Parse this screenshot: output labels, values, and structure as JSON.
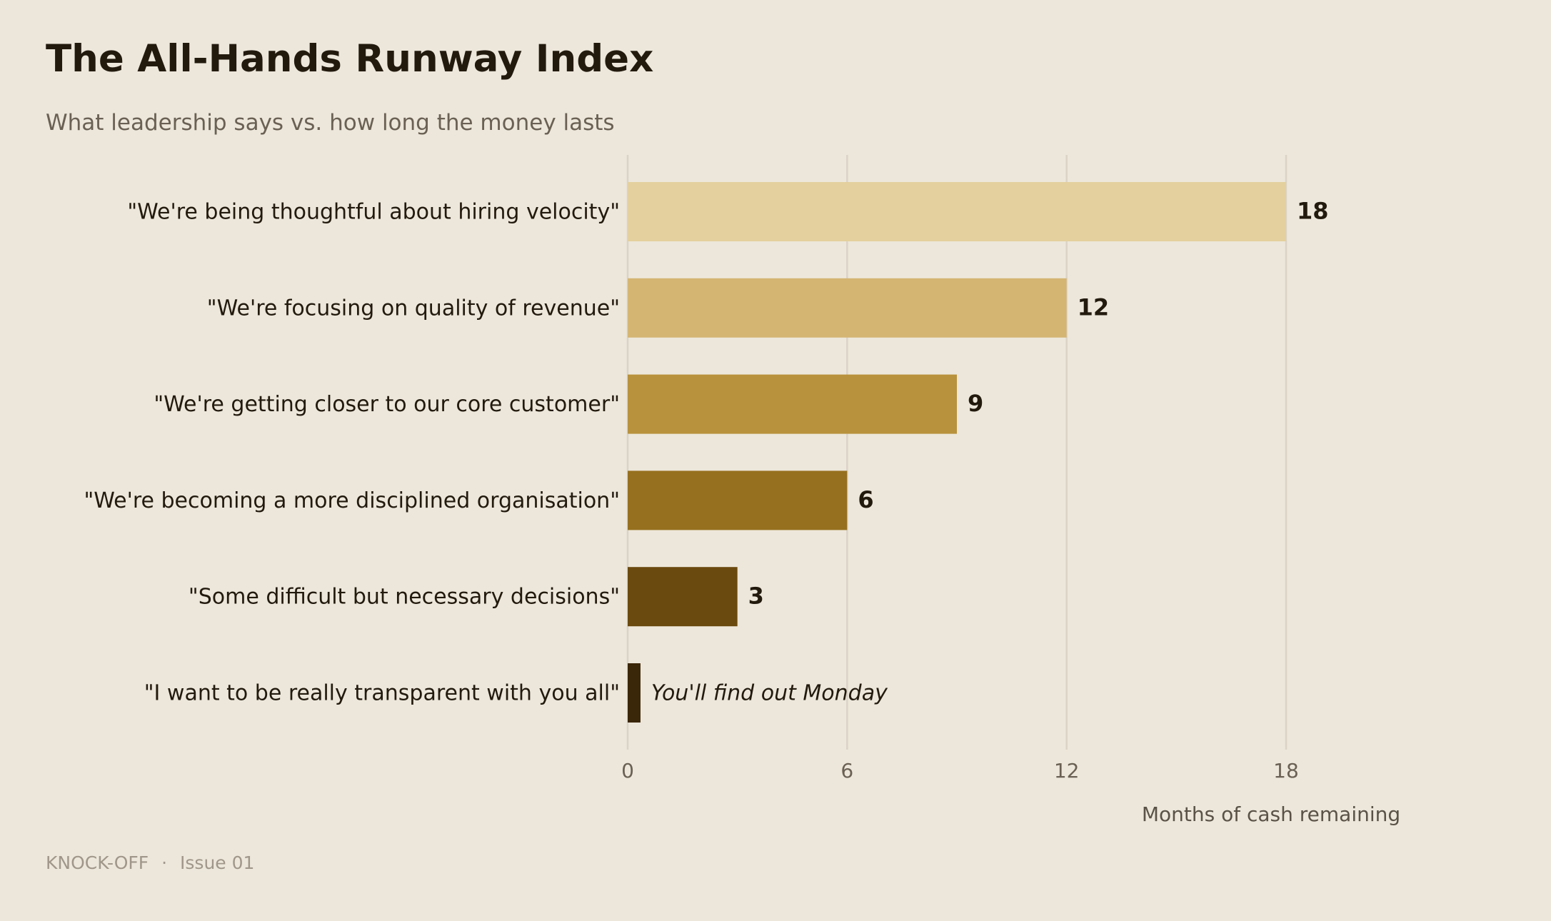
{
  "header": {
    "title": "The All-Hands Runway Index",
    "subtitle": "What leadership says vs. how long the money lasts"
  },
  "footer": {
    "brand": "KNOCK-OFF",
    "separator": "·",
    "issue": "Issue 01"
  },
  "colors": {
    "background": "#EDE7DB",
    "text": "#231A0E",
    "muted": "#6A6154",
    "grid": "#DAD3C6"
  },
  "chart_data": {
    "type": "bar",
    "orientation": "horizontal",
    "title": "The All-Hands Runway Index",
    "subtitle": "What leadership says vs. how long the money lasts",
    "xlabel": "Months of cash remaining",
    "ylabel": "",
    "xlim": [
      0,
      18
    ],
    "xticks": [
      0,
      6,
      12,
      18
    ],
    "grid": "vertical",
    "categories": [
      "\"We're being thoughtful about hiring velocity\"",
      "\"We're focusing on quality of revenue\"",
      "\"We're getting closer to our core customer\"",
      "\"We're becoming a more disciplined organisation\"",
      "\"Some difficult but necessary decisions\"",
      "\"I want to be really transparent with you all\""
    ],
    "values": [
      18,
      12,
      9,
      6,
      3,
      0.35
    ],
    "value_labels": [
      "18",
      "12",
      "9",
      "6",
      "3",
      "You'll find out Monday"
    ],
    "bar_colors": [
      "#E4D09E",
      "#D4B572",
      "#B8923C",
      "#97701F",
      "#6B4A0F",
      "#3A2608"
    ]
  }
}
